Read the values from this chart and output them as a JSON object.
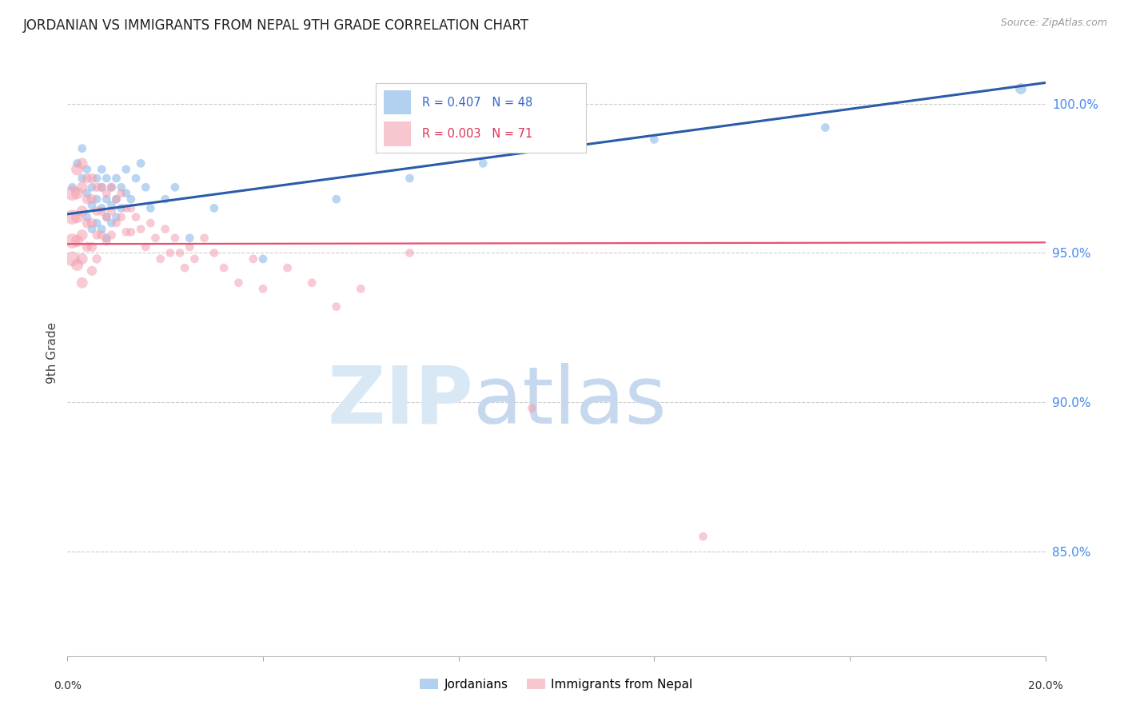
{
  "title": "JORDANIAN VS IMMIGRANTS FROM NEPAL 9TH GRADE CORRELATION CHART",
  "source": "Source: ZipAtlas.com",
  "ylabel": "9th Grade",
  "ytick_values": [
    0.85,
    0.9,
    0.95,
    1.0
  ],
  "xmin": 0.0,
  "xmax": 0.2,
  "ymin": 0.815,
  "ymax": 1.018,
  "blue_color": "#7fb3e8",
  "pink_color": "#f4a0b0",
  "blue_line_color": "#2a5caa",
  "pink_line_color": "#e85070",
  "watermark_zip": "ZIP",
  "watermark_atlas": "atlas",
  "blue_scatter_x": [
    0.001,
    0.002,
    0.003,
    0.003,
    0.004,
    0.004,
    0.004,
    0.005,
    0.005,
    0.005,
    0.006,
    0.006,
    0.006,
    0.007,
    0.007,
    0.007,
    0.007,
    0.008,
    0.008,
    0.008,
    0.008,
    0.009,
    0.009,
    0.009,
    0.01,
    0.01,
    0.01,
    0.011,
    0.011,
    0.012,
    0.012,
    0.013,
    0.014,
    0.015,
    0.016,
    0.017,
    0.02,
    0.022,
    0.025,
    0.03,
    0.04,
    0.055,
    0.07,
    0.085,
    0.1,
    0.12,
    0.155,
    0.195
  ],
  "blue_scatter_y": [
    0.972,
    0.98,
    0.985,
    0.975,
    0.978,
    0.97,
    0.962,
    0.972,
    0.966,
    0.958,
    0.975,
    0.968,
    0.96,
    0.978,
    0.972,
    0.965,
    0.958,
    0.975,
    0.968,
    0.962,
    0.955,
    0.972,
    0.966,
    0.96,
    0.975,
    0.968,
    0.962,
    0.972,
    0.965,
    0.978,
    0.97,
    0.968,
    0.975,
    0.98,
    0.972,
    0.965,
    0.968,
    0.972,
    0.955,
    0.965,
    0.948,
    0.968,
    0.975,
    0.98,
    0.985,
    0.988,
    0.992,
    1.005
  ],
  "blue_marker_sizes": [
    60,
    60,
    60,
    60,
    60,
    60,
    60,
    60,
    60,
    60,
    60,
    60,
    60,
    60,
    60,
    60,
    60,
    60,
    60,
    60,
    60,
    60,
    60,
    60,
    60,
    60,
    60,
    60,
    60,
    60,
    60,
    60,
    60,
    60,
    60,
    60,
    60,
    60,
    60,
    60,
    60,
    60,
    60,
    60,
    60,
    60,
    60,
    100
  ],
  "pink_scatter_x": [
    0.001,
    0.001,
    0.001,
    0.001,
    0.002,
    0.002,
    0.002,
    0.002,
    0.002,
    0.003,
    0.003,
    0.003,
    0.003,
    0.003,
    0.003,
    0.004,
    0.004,
    0.004,
    0.004,
    0.005,
    0.005,
    0.005,
    0.005,
    0.005,
    0.006,
    0.006,
    0.006,
    0.006,
    0.007,
    0.007,
    0.007,
    0.008,
    0.008,
    0.008,
    0.009,
    0.009,
    0.009,
    0.01,
    0.01,
    0.011,
    0.011,
    0.012,
    0.012,
    0.013,
    0.013,
    0.014,
    0.015,
    0.016,
    0.017,
    0.018,
    0.019,
    0.02,
    0.021,
    0.022,
    0.023,
    0.024,
    0.025,
    0.026,
    0.028,
    0.03,
    0.032,
    0.035,
    0.038,
    0.04,
    0.045,
    0.05,
    0.055,
    0.06,
    0.07,
    0.095,
    0.13
  ],
  "pink_scatter_y": [
    0.97,
    0.962,
    0.954,
    0.948,
    0.978,
    0.97,
    0.962,
    0.954,
    0.946,
    0.98,
    0.972,
    0.964,
    0.956,
    0.948,
    0.94,
    0.975,
    0.968,
    0.96,
    0.952,
    0.975,
    0.968,
    0.96,
    0.952,
    0.944,
    0.972,
    0.964,
    0.956,
    0.948,
    0.972,
    0.964,
    0.956,
    0.97,
    0.962,
    0.954,
    0.972,
    0.964,
    0.956,
    0.968,
    0.96,
    0.97,
    0.962,
    0.965,
    0.957,
    0.965,
    0.957,
    0.962,
    0.958,
    0.952,
    0.96,
    0.955,
    0.948,
    0.958,
    0.95,
    0.955,
    0.95,
    0.945,
    0.952,
    0.948,
    0.955,
    0.95,
    0.945,
    0.94,
    0.948,
    0.938,
    0.945,
    0.94,
    0.932,
    0.938,
    0.95,
    0.898,
    0.855
  ],
  "pink_marker_sizes": [
    180,
    180,
    180,
    180,
    120,
    120,
    120,
    120,
    120,
    100,
    100,
    100,
    100,
    100,
    100,
    80,
    80,
    80,
    80,
    80,
    80,
    80,
    80,
    80,
    70,
    70,
    70,
    70,
    70,
    70,
    70,
    65,
    65,
    65,
    65,
    65,
    65,
    60,
    60,
    60,
    60,
    60,
    60,
    60,
    60,
    60,
    60,
    60,
    60,
    60,
    60,
    60,
    60,
    60,
    60,
    60,
    60,
    60,
    60,
    60,
    60,
    60,
    60,
    60,
    60,
    60,
    60,
    60,
    60,
    60,
    60
  ],
  "blue_trend_x": [
    0.0,
    0.2
  ],
  "blue_trend_y": [
    0.963,
    1.007
  ],
  "pink_trend_y": [
    0.953,
    0.9535
  ]
}
